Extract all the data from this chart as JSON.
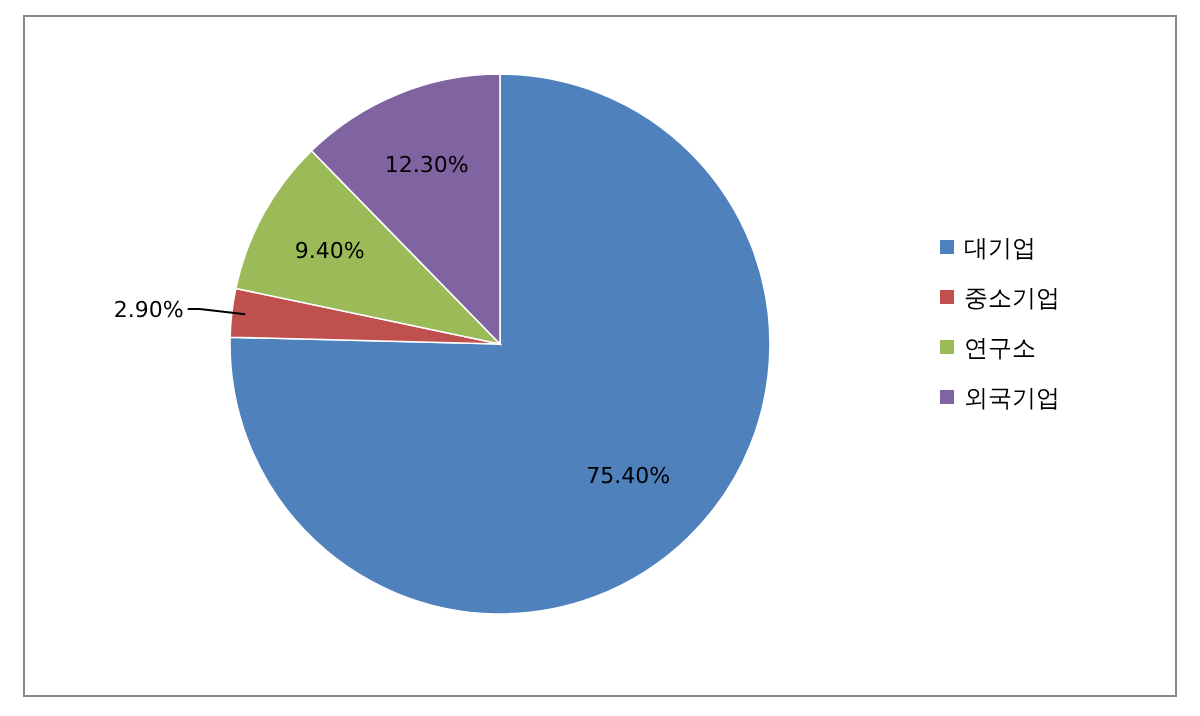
{
  "chart_data": {
    "type": "pie",
    "categories": [
      "대기업",
      "중소기업",
      "연구소",
      "외국기업"
    ],
    "values": [
      75.4,
      2.9,
      9.4,
      12.3
    ],
    "value_labels": [
      "75.40%",
      "2.90%",
      "9.40%",
      "12.30%"
    ],
    "colors": [
      "#4f81bd",
      "#c0504d",
      "#9bbb59",
      "#8064a2"
    ],
    "legend": "right"
  }
}
